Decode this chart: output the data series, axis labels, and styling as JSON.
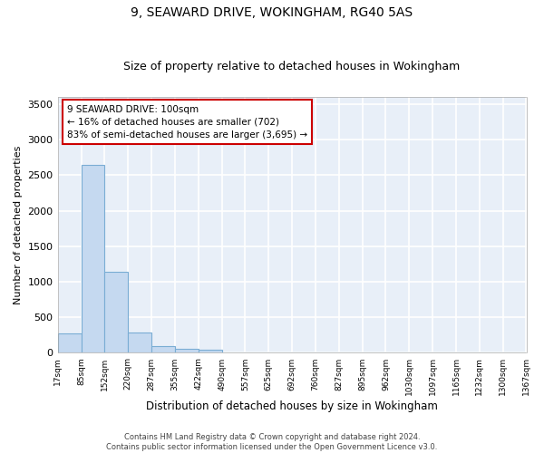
{
  "title": "9, SEAWARD DRIVE, WOKINGHAM, RG40 5AS",
  "subtitle": "Size of property relative to detached houses in Wokingham",
  "xlabel": "Distribution of detached houses by size in Wokingham",
  "ylabel": "Number of detached properties",
  "bar_color": "#c5d9f0",
  "bar_edge_color": "#7aadd4",
  "background_color": "#e8eff8",
  "grid_color": "#ffffff",
  "annotation_text": "9 SEAWARD DRIVE: 100sqm\n← 16% of detached houses are smaller (702)\n83% of semi-detached houses are larger (3,695) →",
  "annotation_box_color": "#ffffff",
  "annotation_edge_color": "#cc0000",
  "property_size_sqm": 100,
  "footer_text": "Contains HM Land Registry data © Crown copyright and database right 2024.\nContains public sector information licensed under the Open Government Licence v3.0.",
  "bin_labels": [
    "17sqm",
    "85sqm",
    "152sqm",
    "220sqm",
    "287sqm",
    "355sqm",
    "422sqm",
    "490sqm",
    "557sqm",
    "625sqm",
    "692sqm",
    "760sqm",
    "827sqm",
    "895sqm",
    "962sqm",
    "1030sqm",
    "1097sqm",
    "1165sqm",
    "1232sqm",
    "1300sqm",
    "1367sqm"
  ],
  "bin_edges": [
    17,
    85,
    152,
    220,
    287,
    355,
    422,
    490,
    557,
    625,
    692,
    760,
    827,
    895,
    962,
    1030,
    1097,
    1165,
    1232,
    1300,
    1367
  ],
  "bar_heights": [
    270,
    2650,
    1145,
    290,
    100,
    60,
    40,
    0,
    0,
    0,
    0,
    0,
    0,
    0,
    0,
    0,
    0,
    0,
    0,
    0
  ],
  "ylim": [
    0,
    3600
  ],
  "yticks": [
    0,
    500,
    1000,
    1500,
    2000,
    2500,
    3000,
    3500
  ]
}
